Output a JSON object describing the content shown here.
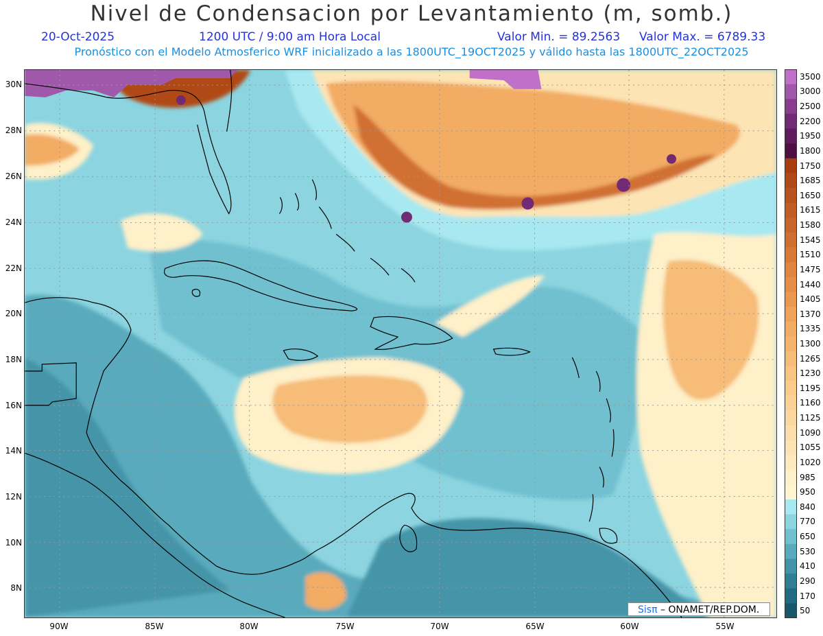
{
  "header": {
    "title": "Nivel de Condensacion por Levantamiento (m, somb.)",
    "date": "20-Oct-2025",
    "time": "1200 UTC / 9:00 am Hora Local",
    "min_value": "Valor Min. = 89.2563",
    "max_value": "Valor Max. = 6789.33",
    "description": "Pronóstico con el Modelo Atmosferico WRF inicializado a las 1800UTC_19OCT2025 y válido hasta las  1800UTC_22OCT2025"
  },
  "lat_labels": [
    "30N",
    "28N",
    "26N",
    "24N",
    "22N",
    "20N",
    "18N",
    "16N",
    "14N",
    "12N",
    "10N",
    "8N"
  ],
  "lon_labels": [
    "90W",
    "85W",
    "80W",
    "75W",
    "70W",
    "65W",
    "60W",
    "55W"
  ],
  "colorbar": {
    "labels": [
      "3500",
      "3000",
      "2500",
      "2200",
      "1950",
      "1800",
      "1750",
      "1685",
      "1650",
      "1615",
      "1580",
      "1545",
      "1510",
      "1475",
      "1440",
      "1405",
      "1370",
      "1335",
      "1300",
      "1265",
      "1230",
      "1195",
      "1160",
      "1125",
      "1090",
      "1055",
      "1020",
      "985",
      "950",
      "840",
      "770",
      "650",
      "530",
      "410",
      "290",
      "170",
      "50"
    ],
    "colors": [
      "#c070c8",
      "#a058aa",
      "#8a3c8e",
      "#722a74",
      "#5e1c5e",
      "#4e1040",
      "#a83e10",
      "#b04818",
      "#b8521e",
      "#c05c24",
      "#c8662a",
      "#d07030",
      "#d87a36",
      "#e08440",
      "#e68e48",
      "#ec9850",
      "#f0a25a",
      "#f2ac64",
      "#f4b46e",
      "#f6bc78",
      "#f8c482",
      "#f9cc8c",
      "#fad296",
      "#fbd8a0",
      "#fcdeaa",
      "#fde4b4",
      "#feeabe",
      "#fef0c8",
      "#fef4d2",
      "#a8e8f0",
      "#8cd4e0",
      "#70c0d0",
      "#58aabc",
      "#4494a8",
      "#307e94",
      "#226a80",
      "#18586c"
    ]
  },
  "footer": {
    "credit_brand": "Sisπ",
    "credit_org": "–  ONAMET/REP.DOM."
  }
}
